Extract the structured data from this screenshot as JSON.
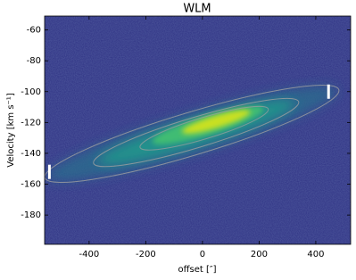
{
  "chart_data": {
    "type": "heatmap",
    "title": "WLM",
    "xlabel": "offset [″]",
    "ylabel": "Velocity [km s⁻¹]",
    "xlim": [
      -557,
      523
    ],
    "ylim": [
      -199,
      -51
    ],
    "xticks": [
      -400,
      -200,
      0,
      200,
      400
    ],
    "yticks": [
      -60,
      -80,
      -100,
      -120,
      -140,
      -160,
      -180
    ],
    "markers": [
      {
        "x": -540,
        "y": -152
      },
      {
        "x": 445,
        "y": -100
      }
    ],
    "marker_color": "#ffffff"
  }
}
